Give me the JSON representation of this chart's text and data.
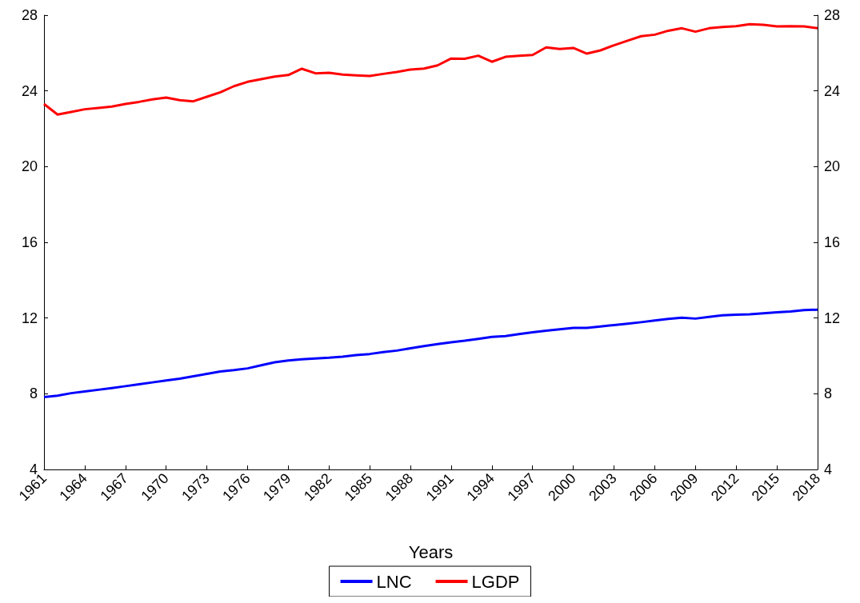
{
  "chart_data": {
    "type": "line",
    "xlabel": "Years",
    "x": [
      1961,
      1962,
      1963,
      1964,
      1965,
      1966,
      1967,
      1968,
      1969,
      1970,
      1971,
      1972,
      1973,
      1974,
      1975,
      1976,
      1977,
      1978,
      1979,
      1980,
      1981,
      1982,
      1983,
      1984,
      1985,
      1986,
      1987,
      1988,
      1989,
      1990,
      1991,
      1992,
      1993,
      1994,
      1995,
      1996,
      1997,
      1998,
      1999,
      2000,
      2001,
      2002,
      2003,
      2004,
      2005,
      2006,
      2007,
      2008,
      2009,
      2010,
      2011,
      2012,
      2013,
      2014,
      2015,
      2016,
      2017,
      2018
    ],
    "xlim": [
      1961,
      2018
    ],
    "xticks": [
      1961,
      1964,
      1967,
      1970,
      1973,
      1976,
      1979,
      1982,
      1985,
      1988,
      1991,
      1994,
      1997,
      2000,
      2003,
      2006,
      2009,
      2012,
      2015,
      2018
    ],
    "ylim": [
      4,
      28
    ],
    "yticks": [
      4,
      8,
      12,
      16,
      20,
      24,
      28
    ],
    "y2lim": [
      4,
      28
    ],
    "y2ticks": [
      4,
      8,
      12,
      16,
      20,
      24,
      28
    ],
    "series": [
      {
        "name": "LNC",
        "color": "#0000ff",
        "values": [
          7.82,
          7.9,
          8.03,
          8.12,
          8.21,
          8.3,
          8.4,
          8.5,
          8.6,
          8.7,
          8.8,
          8.92,
          9.05,
          9.18,
          9.25,
          9.34,
          9.5,
          9.66,
          9.76,
          9.82,
          9.86,
          9.9,
          9.96,
          10.04,
          10.1,
          10.2,
          10.28,
          10.4,
          10.52,
          10.62,
          10.72,
          10.8,
          10.9,
          11.0,
          11.05,
          11.15,
          11.25,
          11.33,
          11.4,
          11.48,
          11.48,
          11.55,
          11.63,
          11.7,
          11.78,
          11.87,
          11.95,
          12.02,
          11.97,
          12.06,
          12.14,
          12.18,
          12.2,
          12.25,
          12.3,
          12.35,
          12.42,
          12.44
        ]
      },
      {
        "name": "LGDP",
        "color": "#ff0000",
        "values": [
          23.31,
          22.75,
          22.89,
          23.03,
          23.1,
          23.17,
          23.31,
          23.42,
          23.55,
          23.65,
          23.51,
          23.45,
          23.69,
          23.93,
          24.25,
          24.48,
          24.62,
          24.76,
          24.84,
          25.17,
          24.93,
          24.96,
          24.86,
          24.82,
          24.79,
          24.9,
          25.0,
          25.13,
          25.18,
          25.35,
          25.71,
          25.7,
          25.86,
          25.54,
          25.8,
          25.86,
          25.9,
          26.3,
          26.21,
          26.27,
          25.97,
          26.14,
          26.41,
          26.65,
          26.89,
          26.97,
          27.18,
          27.31,
          27.13,
          27.31,
          27.38,
          27.42,
          27.52,
          27.49,
          27.41,
          27.42,
          27.41,
          27.31
        ]
      }
    ],
    "legend": "bottom",
    "grid": false,
    "marker": "none",
    "line_style": "solid"
  }
}
